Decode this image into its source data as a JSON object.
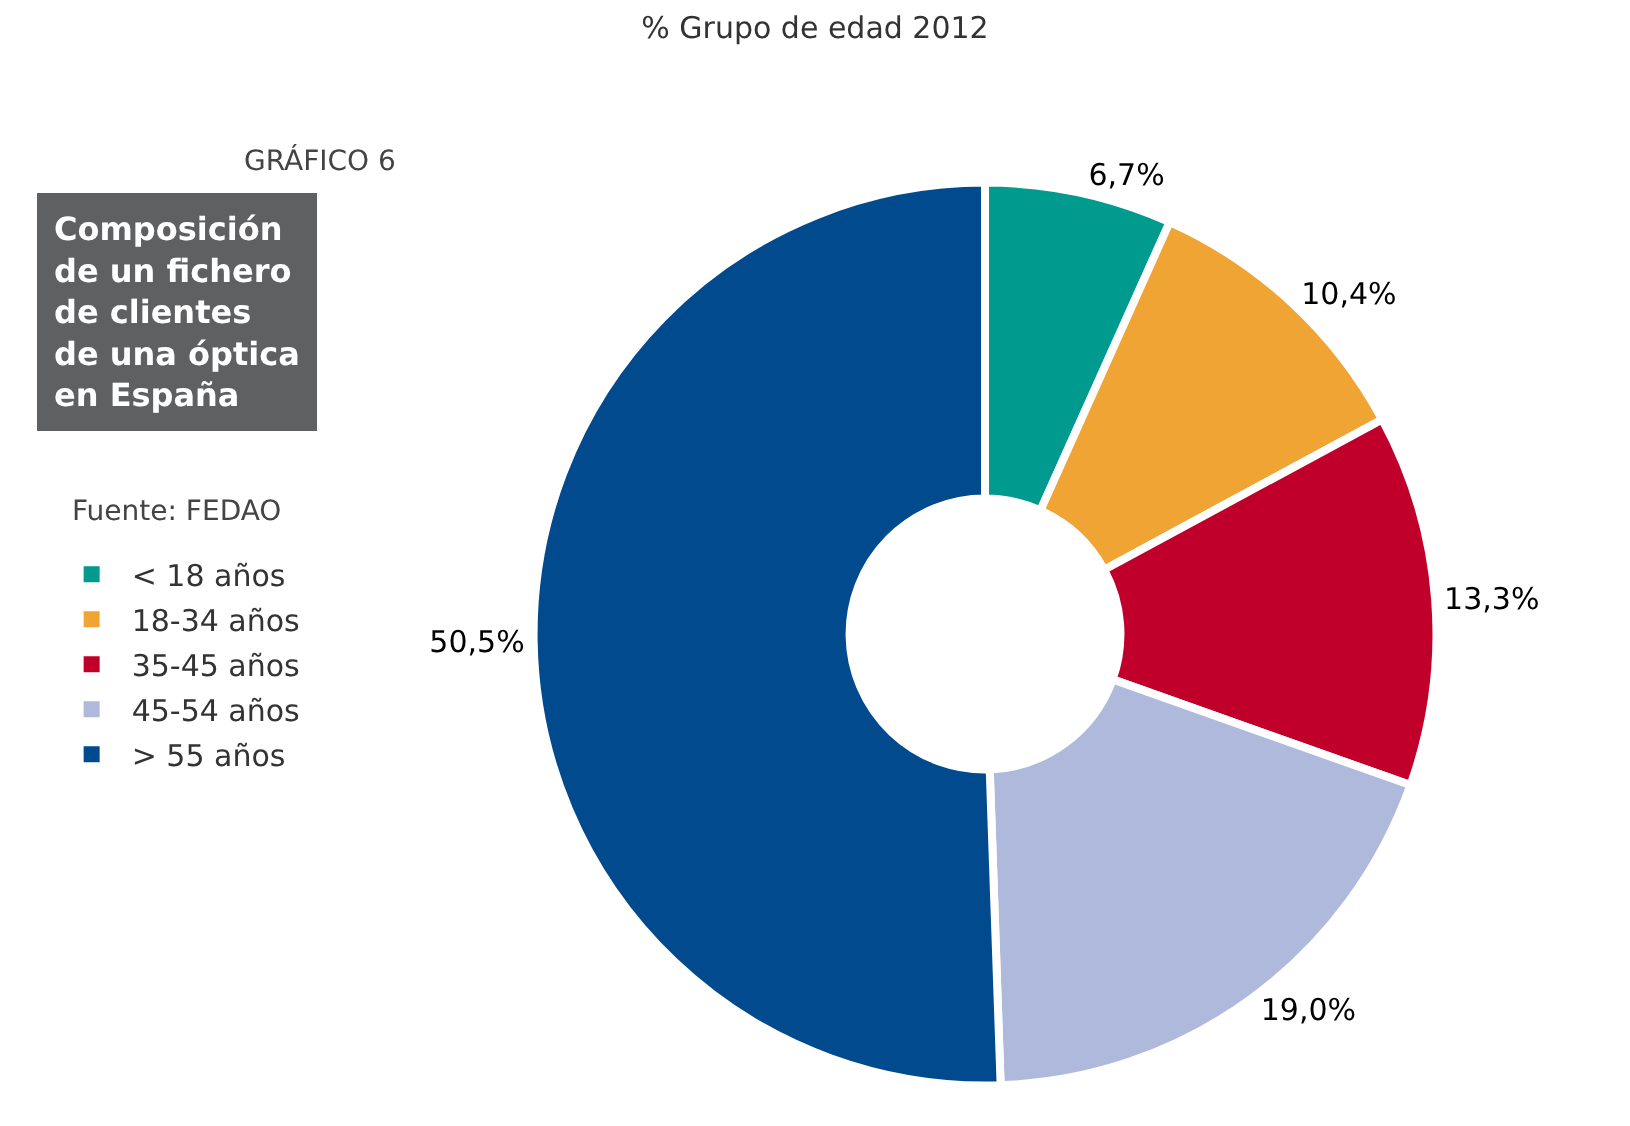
{
  "chart_data": {
    "type": "donut",
    "title": "% Grupo de edad 2012",
    "categories": [
      "< 18 años",
      "18-34 años",
      "35-45 años",
      "45-54 años",
      "> 55 años"
    ],
    "values": [
      6.7,
      10.4,
      13.3,
      19.0,
      50.5
    ],
    "value_labels": [
      "6,7%",
      "10,4%",
      "13,3%",
      "19,0%",
      "50,5%"
    ],
    "colors": [
      "#009b8e",
      "#f0a434",
      "#c0002b",
      "#aeb9dc",
      "#004a8d"
    ],
    "legend": "left",
    "annotations": [
      "GRÁFICO 6",
      "Composición\nde un fichero\nde clientes\nde una óptica\nen España",
      "Fuente: FEDAO"
    ]
  }
}
